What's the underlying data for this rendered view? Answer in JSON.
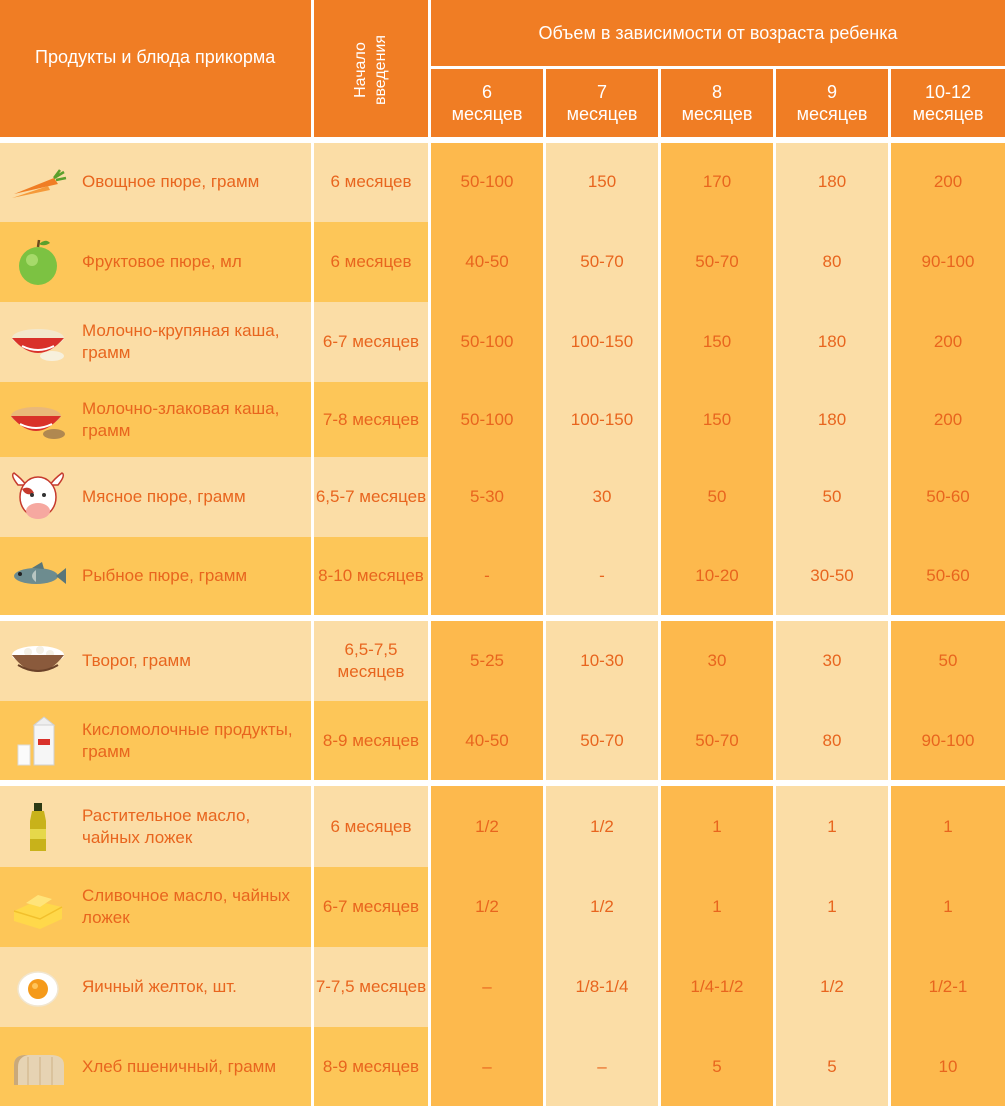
{
  "header": {
    "food_col": "Продукты и блюда прикорма",
    "start_col": "Начало введения",
    "group_title": "Объем в зависимости от возраста ребенка",
    "months": [
      {
        "num": "6",
        "unit": "месяцев"
      },
      {
        "num": "7",
        "unit": "месяцев"
      },
      {
        "num": "8",
        "unit": "месяцев"
      },
      {
        "num": "9",
        "unit": "месяцев"
      },
      {
        "num": "10-12",
        "unit": "месяцев"
      }
    ]
  },
  "rows": [
    {
      "icon": "carrot-icon",
      "name": "Овощное пюре, грамм",
      "start": "6 месяцев",
      "values": [
        "50-100",
        "150",
        "170",
        "180",
        "200"
      ]
    },
    {
      "icon": "apple-icon",
      "name": "Фруктовое пюре, мл",
      "start": "6 месяцев",
      "values": [
        "40-50",
        "50-70",
        "50-70",
        "80",
        "90-100"
      ]
    },
    {
      "icon": "porridge-bowl-icon",
      "name": "Молочно-крупяная каша, грамм",
      "start": "6-7 месяцев",
      "values": [
        "50-100",
        "100-150",
        "150",
        "180",
        "200"
      ]
    },
    {
      "icon": "cereal-bowl-icon",
      "name": "Молочно-злаковая каша, грамм",
      "start": "7-8 месяцев",
      "values": [
        "50-100",
        "100-150",
        "150",
        "180",
        "200"
      ]
    },
    {
      "icon": "cow-icon",
      "name": "Мясное пюре, грамм",
      "start": "6,5-7 месяцев",
      "values": [
        "5-30",
        "30",
        "50",
        "50",
        "50-60"
      ]
    },
    {
      "icon": "fish-icon",
      "name": "Рыбное пюре, грамм",
      "start": "8-10 месяцев",
      "values": [
        "-",
        "-",
        "10-20",
        "30-50",
        "50-60"
      ]
    },
    {
      "icon": "cottage-cheese-icon",
      "name": "Творог, грамм",
      "start": "6,5-7,5 месяцев",
      "values": [
        "5-25",
        "10-30",
        "30",
        "30",
        "50"
      ]
    },
    {
      "icon": "kefir-carton-icon",
      "name": "Кисломолочные продукты, грамм",
      "start": "8-9 месяцев",
      "values": [
        "40-50",
        "50-70",
        "50-70",
        "80",
        "90-100"
      ]
    },
    {
      "icon": "oil-bottle-icon",
      "name": "Растительное масло, чайных ложек",
      "start": "6 месяцев",
      "values": [
        "1/2",
        "1/2",
        "1",
        "1",
        "1"
      ]
    },
    {
      "icon": "butter-icon",
      "name": "Сливочное масло, чайных ложек",
      "start": "6-7 месяцев",
      "values": [
        "1/2",
        "1/2",
        "1",
        "1",
        "1"
      ]
    },
    {
      "icon": "egg-yolk-icon",
      "name": "Яичный желток, шт.",
      "start": "7-7,5 месяцев",
      "values": [
        "–",
        "1/8-1/4",
        "1/4-1/2",
        "1/2",
        "1/2-1"
      ]
    },
    {
      "icon": "bread-icon",
      "name": "Хлеб пшеничный, грамм",
      "start": "8-9 месяцев",
      "values": [
        "–",
        "–",
        "5",
        "5",
        "10"
      ]
    }
  ],
  "colors": {
    "header": "#f07d24",
    "light": "#fbdda6",
    "medium": "#fdc658",
    "dark": "#fdb94d",
    "text": "#e8651e"
  }
}
